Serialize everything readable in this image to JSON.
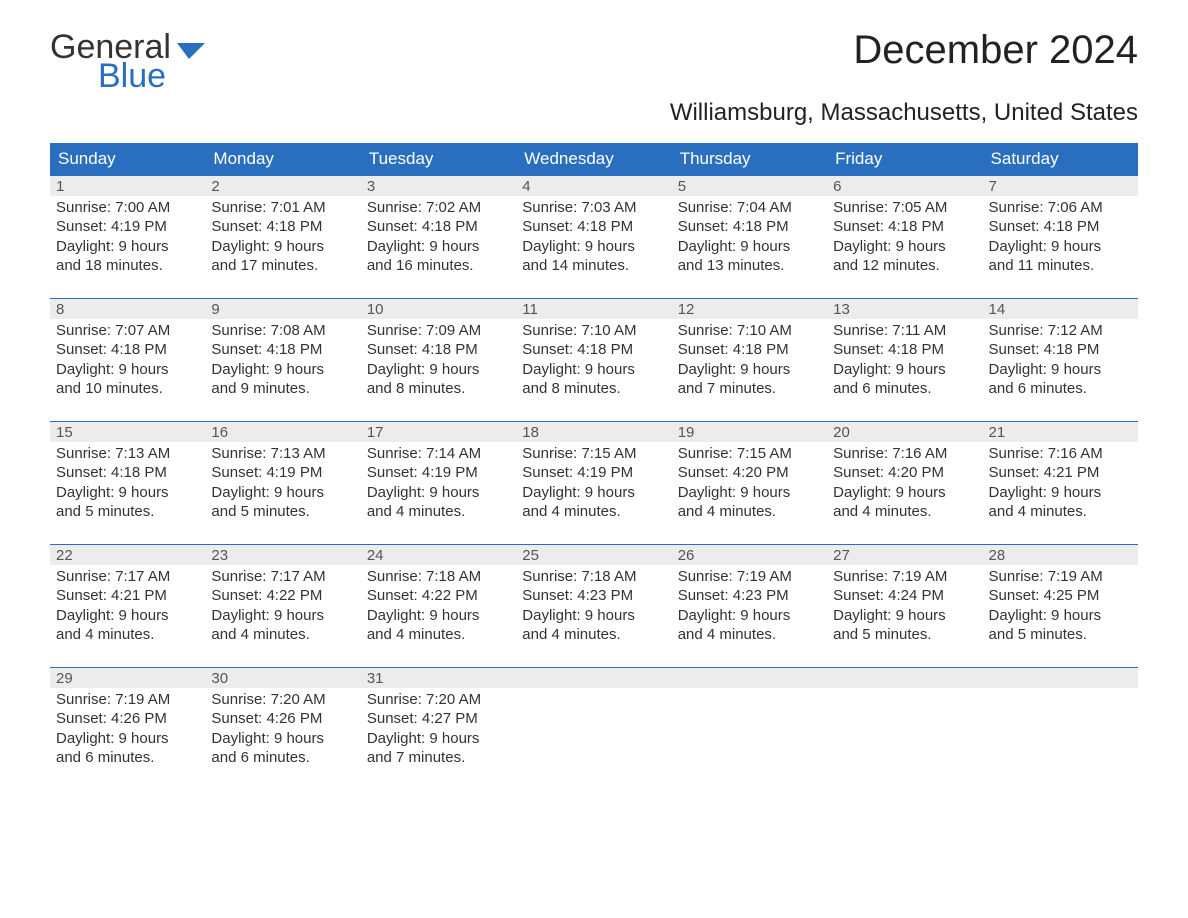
{
  "logo": {
    "text1": "General",
    "text2": "Blue",
    "color_text2": "#2a6fbf",
    "icon_color": "#2a6fbf"
  },
  "header": {
    "title": "December 2024",
    "subtitle": "Williamsburg, Massachusetts, United States"
  },
  "styling": {
    "header_bar_bg": "#2a6fbf",
    "header_bar_fg": "#ffffff",
    "daynum_bg": "#ececec",
    "row_border": "#2a6fbf",
    "body_text": "#333333",
    "title_fontsize": 40,
    "subtitle_fontsize": 24,
    "weekday_fontsize": 17,
    "cell_fontsize": 15
  },
  "weekdays": [
    "Sunday",
    "Monday",
    "Tuesday",
    "Wednesday",
    "Thursday",
    "Friday",
    "Saturday"
  ],
  "weeks": [
    [
      {
        "n": "1",
        "l1": "Sunrise: 7:00 AM",
        "l2": "Sunset: 4:19 PM",
        "l3": "Daylight: 9 hours",
        "l4": "and 18 minutes."
      },
      {
        "n": "2",
        "l1": "Sunrise: 7:01 AM",
        "l2": "Sunset: 4:18 PM",
        "l3": "Daylight: 9 hours",
        "l4": "and 17 minutes."
      },
      {
        "n": "3",
        "l1": "Sunrise: 7:02 AM",
        "l2": "Sunset: 4:18 PM",
        "l3": "Daylight: 9 hours",
        "l4": "and 16 minutes."
      },
      {
        "n": "4",
        "l1": "Sunrise: 7:03 AM",
        "l2": "Sunset: 4:18 PM",
        "l3": "Daylight: 9 hours",
        "l4": "and 14 minutes."
      },
      {
        "n": "5",
        "l1": "Sunrise: 7:04 AM",
        "l2": "Sunset: 4:18 PM",
        "l3": "Daylight: 9 hours",
        "l4": "and 13 minutes."
      },
      {
        "n": "6",
        "l1": "Sunrise: 7:05 AM",
        "l2": "Sunset: 4:18 PM",
        "l3": "Daylight: 9 hours",
        "l4": "and 12 minutes."
      },
      {
        "n": "7",
        "l1": "Sunrise: 7:06 AM",
        "l2": "Sunset: 4:18 PM",
        "l3": "Daylight: 9 hours",
        "l4": "and 11 minutes."
      }
    ],
    [
      {
        "n": "8",
        "l1": "Sunrise: 7:07 AM",
        "l2": "Sunset: 4:18 PM",
        "l3": "Daylight: 9 hours",
        "l4": "and 10 minutes."
      },
      {
        "n": "9",
        "l1": "Sunrise: 7:08 AM",
        "l2": "Sunset: 4:18 PM",
        "l3": "Daylight: 9 hours",
        "l4": "and 9 minutes."
      },
      {
        "n": "10",
        "l1": "Sunrise: 7:09 AM",
        "l2": "Sunset: 4:18 PM",
        "l3": "Daylight: 9 hours",
        "l4": "and 8 minutes."
      },
      {
        "n": "11",
        "l1": "Sunrise: 7:10 AM",
        "l2": "Sunset: 4:18 PM",
        "l3": "Daylight: 9 hours",
        "l4": "and 8 minutes."
      },
      {
        "n": "12",
        "l1": "Sunrise: 7:10 AM",
        "l2": "Sunset: 4:18 PM",
        "l3": "Daylight: 9 hours",
        "l4": "and 7 minutes."
      },
      {
        "n": "13",
        "l1": "Sunrise: 7:11 AM",
        "l2": "Sunset: 4:18 PM",
        "l3": "Daylight: 9 hours",
        "l4": "and 6 minutes."
      },
      {
        "n": "14",
        "l1": "Sunrise: 7:12 AM",
        "l2": "Sunset: 4:18 PM",
        "l3": "Daylight: 9 hours",
        "l4": "and 6 minutes."
      }
    ],
    [
      {
        "n": "15",
        "l1": "Sunrise: 7:13 AM",
        "l2": "Sunset: 4:18 PM",
        "l3": "Daylight: 9 hours",
        "l4": "and 5 minutes."
      },
      {
        "n": "16",
        "l1": "Sunrise: 7:13 AM",
        "l2": "Sunset: 4:19 PM",
        "l3": "Daylight: 9 hours",
        "l4": "and 5 minutes."
      },
      {
        "n": "17",
        "l1": "Sunrise: 7:14 AM",
        "l2": "Sunset: 4:19 PM",
        "l3": "Daylight: 9 hours",
        "l4": "and 4 minutes."
      },
      {
        "n": "18",
        "l1": "Sunrise: 7:15 AM",
        "l2": "Sunset: 4:19 PM",
        "l3": "Daylight: 9 hours",
        "l4": "and 4 minutes."
      },
      {
        "n": "19",
        "l1": "Sunrise: 7:15 AM",
        "l2": "Sunset: 4:20 PM",
        "l3": "Daylight: 9 hours",
        "l4": "and 4 minutes."
      },
      {
        "n": "20",
        "l1": "Sunrise: 7:16 AM",
        "l2": "Sunset: 4:20 PM",
        "l3": "Daylight: 9 hours",
        "l4": "and 4 minutes."
      },
      {
        "n": "21",
        "l1": "Sunrise: 7:16 AM",
        "l2": "Sunset: 4:21 PM",
        "l3": "Daylight: 9 hours",
        "l4": "and 4 minutes."
      }
    ],
    [
      {
        "n": "22",
        "l1": "Sunrise: 7:17 AM",
        "l2": "Sunset: 4:21 PM",
        "l3": "Daylight: 9 hours",
        "l4": "and 4 minutes."
      },
      {
        "n": "23",
        "l1": "Sunrise: 7:17 AM",
        "l2": "Sunset: 4:22 PM",
        "l3": "Daylight: 9 hours",
        "l4": "and 4 minutes."
      },
      {
        "n": "24",
        "l1": "Sunrise: 7:18 AM",
        "l2": "Sunset: 4:22 PM",
        "l3": "Daylight: 9 hours",
        "l4": "and 4 minutes."
      },
      {
        "n": "25",
        "l1": "Sunrise: 7:18 AM",
        "l2": "Sunset: 4:23 PM",
        "l3": "Daylight: 9 hours",
        "l4": "and 4 minutes."
      },
      {
        "n": "26",
        "l1": "Sunrise: 7:19 AM",
        "l2": "Sunset: 4:23 PM",
        "l3": "Daylight: 9 hours",
        "l4": "and 4 minutes."
      },
      {
        "n": "27",
        "l1": "Sunrise: 7:19 AM",
        "l2": "Sunset: 4:24 PM",
        "l3": "Daylight: 9 hours",
        "l4": "and 5 minutes."
      },
      {
        "n": "28",
        "l1": "Sunrise: 7:19 AM",
        "l2": "Sunset: 4:25 PM",
        "l3": "Daylight: 9 hours",
        "l4": "and 5 minutes."
      }
    ],
    [
      {
        "n": "29",
        "l1": "Sunrise: 7:19 AM",
        "l2": "Sunset: 4:26 PM",
        "l3": "Daylight: 9 hours",
        "l4": "and 6 minutes."
      },
      {
        "n": "30",
        "l1": "Sunrise: 7:20 AM",
        "l2": "Sunset: 4:26 PM",
        "l3": "Daylight: 9 hours",
        "l4": "and 6 minutes."
      },
      {
        "n": "31",
        "l1": "Sunrise: 7:20 AM",
        "l2": "Sunset: 4:27 PM",
        "l3": "Daylight: 9 hours",
        "l4": "and 7 minutes."
      },
      {
        "n": "",
        "l1": "",
        "l2": "",
        "l3": "",
        "l4": ""
      },
      {
        "n": "",
        "l1": "",
        "l2": "",
        "l3": "",
        "l4": ""
      },
      {
        "n": "",
        "l1": "",
        "l2": "",
        "l3": "",
        "l4": ""
      },
      {
        "n": "",
        "l1": "",
        "l2": "",
        "l3": "",
        "l4": ""
      }
    ]
  ]
}
